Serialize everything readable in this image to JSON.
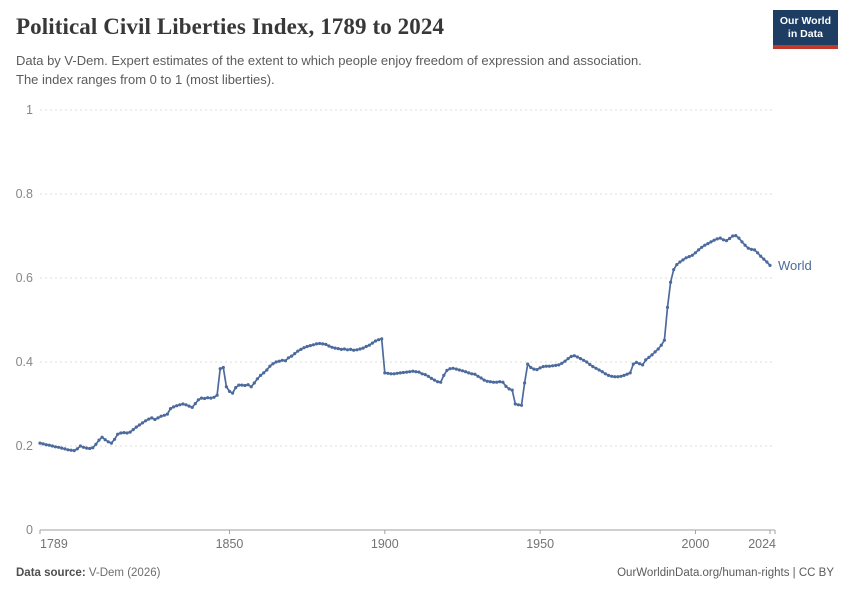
{
  "header": {
    "title": "Political Civil Liberties Index, 1789 to 2024",
    "subtitle_line1": "Data by V-Dem. Expert estimates of the extent to which people enjoy freedom of expression and association.",
    "subtitle_line2": "The index ranges from 0 to 1 (most liberties).",
    "logo": {
      "line1": "Our World",
      "line2": "in Data",
      "bg_color": "#1d3d63",
      "accent_color": "#c0392b",
      "text_color": "#ffffff"
    }
  },
  "chart_data": {
    "type": "line",
    "title": "Political Civil Liberties Index, 1789 to 2024",
    "xlabel": "",
    "ylabel": "",
    "x_range": [
      1789,
      2024
    ],
    "y_range": [
      0,
      1
    ],
    "grid": "dashed-horizontal",
    "legend_position": "end-of-line-label",
    "x_ticks": [
      {
        "year": 1789,
        "label": "1789"
      },
      {
        "year": 1850,
        "label": "1850"
      },
      {
        "year": 1900,
        "label": "1900"
      },
      {
        "year": 1950,
        "label": "1950"
      },
      {
        "year": 2000,
        "label": "2000"
      },
      {
        "year": 2024,
        "label": "2024"
      }
    ],
    "y_ticks": [
      {
        "value": 0,
        "label": "0"
      },
      {
        "value": 0.2,
        "label": "0.2"
      },
      {
        "value": 0.4,
        "label": "0.4"
      },
      {
        "value": 0.6,
        "label": "0.6"
      },
      {
        "value": 0.8,
        "label": "0.8"
      },
      {
        "value": 1,
        "label": "1"
      }
    ],
    "series": [
      {
        "name": "World",
        "color": "#4C6A9C",
        "start_year": 1789,
        "values": [
          0.207,
          0.205,
          0.203,
          0.202,
          0.2,
          0.198,
          0.197,
          0.195,
          0.193,
          0.191,
          0.19,
          0.189,
          0.193,
          0.2,
          0.197,
          0.195,
          0.194,
          0.196,
          0.204,
          0.214,
          0.221,
          0.215,
          0.21,
          0.207,
          0.216,
          0.228,
          0.231,
          0.232,
          0.231,
          0.233,
          0.239,
          0.245,
          0.25,
          0.255,
          0.26,
          0.264,
          0.267,
          0.263,
          0.267,
          0.271,
          0.273,
          0.276,
          0.289,
          0.293,
          0.296,
          0.298,
          0.3,
          0.298,
          0.295,
          0.292,
          0.301,
          0.31,
          0.314,
          0.313,
          0.315,
          0.314,
          0.316,
          0.321,
          0.384,
          0.387,
          0.341,
          0.33,
          0.326,
          0.339,
          0.345,
          0.345,
          0.344,
          0.346,
          0.341,
          0.35,
          0.36,
          0.368,
          0.374,
          0.381,
          0.39,
          0.396,
          0.4,
          0.402,
          0.404,
          0.403,
          0.41,
          0.414,
          0.42,
          0.426,
          0.43,
          0.434,
          0.437,
          0.439,
          0.441,
          0.443,
          0.444,
          0.443,
          0.442,
          0.438,
          0.435,
          0.433,
          0.432,
          0.43,
          0.431,
          0.429,
          0.43,
          0.428,
          0.429,
          0.431,
          0.433,
          0.437,
          0.44,
          0.445,
          0.45,
          0.453,
          0.455,
          0.374,
          0.373,
          0.372,
          0.372,
          0.373,
          0.374,
          0.375,
          0.376,
          0.377,
          0.378,
          0.377,
          0.376,
          0.372,
          0.37,
          0.366,
          0.361,
          0.357,
          0.353,
          0.352,
          0.368,
          0.38,
          0.384,
          0.385,
          0.383,
          0.381,
          0.379,
          0.377,
          0.374,
          0.372,
          0.371,
          0.366,
          0.362,
          0.357,
          0.354,
          0.353,
          0.352,
          0.352,
          0.353,
          0.352,
          0.342,
          0.336,
          0.333,
          0.3,
          0.298,
          0.297,
          0.35,
          0.395,
          0.387,
          0.383,
          0.382,
          0.386,
          0.389,
          0.39,
          0.39,
          0.391,
          0.392,
          0.393,
          0.397,
          0.402,
          0.408,
          0.413,
          0.415,
          0.412,
          0.408,
          0.404,
          0.4,
          0.394,
          0.389,
          0.385,
          0.381,
          0.377,
          0.372,
          0.368,
          0.366,
          0.365,
          0.365,
          0.366,
          0.368,
          0.371,
          0.374,
          0.395,
          0.399,
          0.396,
          0.393,
          0.405,
          0.411,
          0.417,
          0.424,
          0.431,
          0.44,
          0.452,
          0.53,
          0.59,
          0.62,
          0.632,
          0.638,
          0.643,
          0.648,
          0.651,
          0.654,
          0.66,
          0.667,
          0.673,
          0.678,
          0.682,
          0.686,
          0.69,
          0.693,
          0.695,
          0.691,
          0.689,
          0.694,
          0.7,
          0.701,
          0.695,
          0.686,
          0.678,
          0.671,
          0.668,
          0.667,
          0.66,
          0.652,
          0.645,
          0.638,
          0.63
        ]
      }
    ]
  },
  "footer": {
    "source_label": "Data source:",
    "source_value": " V-Dem (2026)",
    "right_text": "OurWorldinData.org/human-rights | CC BY"
  }
}
